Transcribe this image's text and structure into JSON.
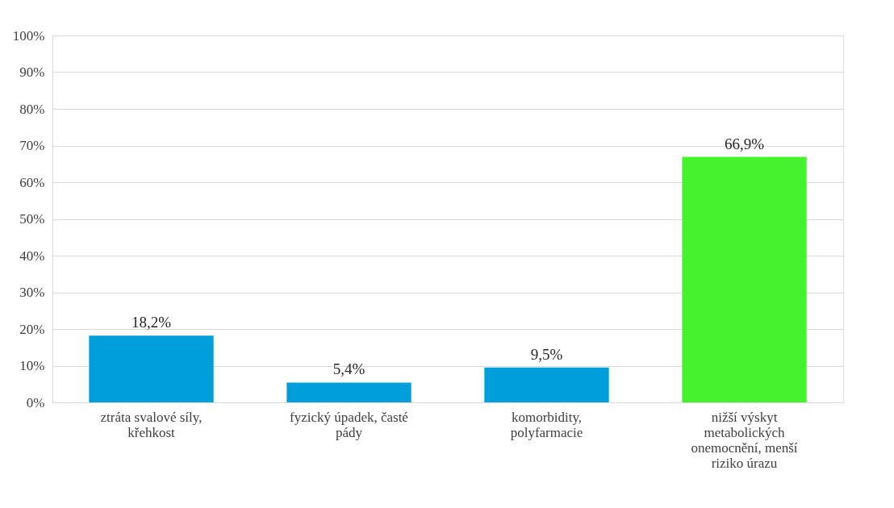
{
  "chart_data": {
    "type": "bar",
    "categories": [
      "ztráta svalové síly, křehkost",
      "fyzický úpadek, časté pády",
      "komorbidity, polyfarmacie",
      "nižší výskyt metabolických onemocnění, menší riziko úrazu"
    ],
    "values": [
      18.2,
      5.4,
      9.5,
      66.9
    ],
    "colors": [
      "#009fdb",
      "#009fdb",
      "#009fdb",
      "#44f22e"
    ],
    "value_labels": [
      "18,2%",
      "5,4%",
      "9,5%",
      "66,9%"
    ],
    "ylim": [
      0,
      100
    ],
    "yticks": [
      {
        "value": 0,
        "label": "0%"
      },
      {
        "value": 10,
        "label": "10%"
      },
      {
        "value": 20,
        "label": "20%"
      },
      {
        "value": 30,
        "label": "30%"
      },
      {
        "value": 40,
        "label": "40%"
      },
      {
        "value": 50,
        "label": "50%"
      },
      {
        "value": 60,
        "label": "60%"
      },
      {
        "value": 70,
        "label": "70%"
      },
      {
        "value": 80,
        "label": "80%"
      },
      {
        "value": 90,
        "label": "90%"
      },
      {
        "value": 100,
        "label": "100%"
      }
    ],
    "grid": "y"
  }
}
